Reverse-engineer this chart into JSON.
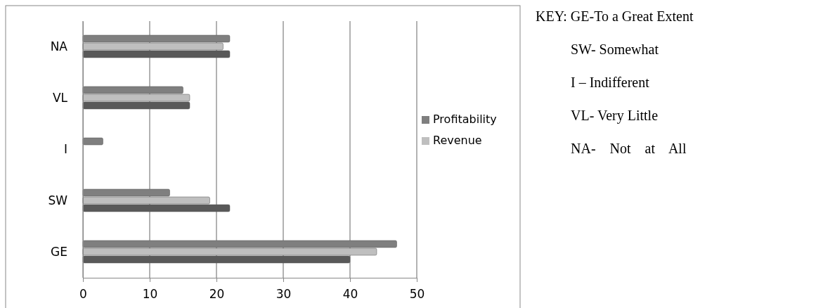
{
  "chart_data": {
    "type": "bar",
    "orientation": "horizontal",
    "categories": [
      "NA",
      "VL",
      "I",
      "SW",
      "GE"
    ],
    "series": [
      {
        "name": "Profitability",
        "color": "#7f7f7f",
        "values": [
          22,
          15,
          3,
          13,
          47
        ]
      },
      {
        "name": "Revenue",
        "color": "#bfbfbf",
        "values": [
          21,
          16,
          0,
          19,
          44
        ]
      },
      {
        "color": "#595959",
        "values": [
          22,
          16,
          0,
          22,
          40
        ]
      }
    ],
    "xlim": [
      0,
      50
    ],
    "xticks": [
      0,
      10,
      20,
      30,
      40,
      50
    ],
    "grid": "x",
    "legend": "right",
    "annotations": [
      "KEY: GE-To a Great Extent",
      "SW- Somewhat",
      "I – Indifferent",
      "VL- Very Little",
      "NA-    Not    at    All"
    ]
  }
}
